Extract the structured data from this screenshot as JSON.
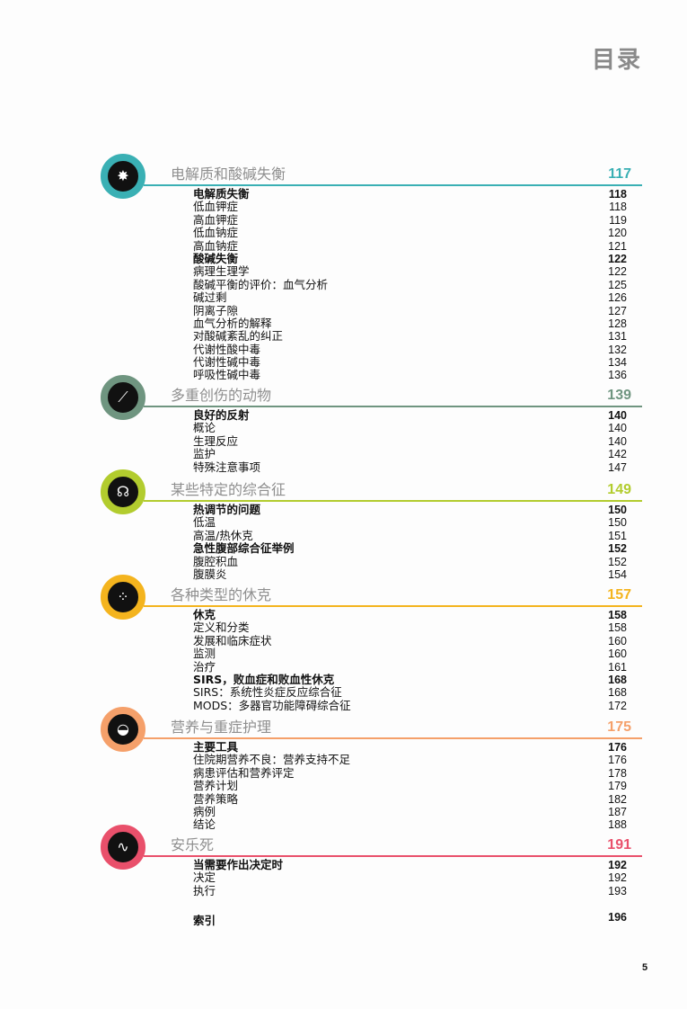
{
  "title": "目录",
  "sections": [
    {
      "title": "电解质和酸碱失衡",
      "page": "117",
      "color": "#3ab0b4",
      "icon": "h-plus-burst-icon",
      "glyph": "✸",
      "items": [
        [
          "电解质失衡",
          "118",
          true
        ],
        [
          "低血钾症",
          "118",
          false
        ],
        [
          "高血钾症",
          "119",
          false
        ],
        [
          "低血钠症",
          "120",
          false
        ],
        [
          "高血钠症",
          "121",
          false
        ],
        [
          "酸碱失衡",
          "122",
          true
        ],
        [
          "病理生理学",
          "122",
          false
        ],
        [
          "酸碱平衡的评价：血气分析",
          "125",
          false
        ],
        [
          "碱过剩",
          "126",
          false
        ],
        [
          "阴离子隙",
          "127",
          false
        ],
        [
          "血气分析的解释",
          "128",
          false
        ],
        [
          "对酸碱紊乱的纠正",
          "131",
          false
        ],
        [
          "代谢性酸中毒",
          "132",
          false
        ],
        [
          "代谢性碱中毒",
          "134",
          false
        ],
        [
          "呼吸性碱中毒",
          "136",
          false
        ]
      ]
    },
    {
      "title": "多重创伤的动物",
      "page": "139",
      "color": "#6f9580",
      "icon": "bone-icon",
      "glyph": "⟋",
      "items": [
        [
          "良好的反射",
          "140",
          true
        ],
        [
          "概论",
          "140",
          false
        ],
        [
          "生理反应",
          "140",
          false
        ],
        [
          "监护",
          "142",
          false
        ],
        [
          "特殊注意事项",
          "147",
          false
        ]
      ]
    },
    {
      "title": "某些特定的综合征",
      "page": "149",
      "color": "#b2cc2e",
      "icon": "animal-head-icon",
      "glyph": "☊",
      "items": [
        [
          "热调节的问题",
          "150",
          true
        ],
        [
          "低温",
          "150",
          false
        ],
        [
          "高温/热休克",
          "151",
          false
        ],
        [
          "急性腹部综合征举例",
          "152",
          true
        ],
        [
          "腹腔积血",
          "152",
          false
        ],
        [
          "腹膜炎",
          "154",
          false
        ]
      ]
    },
    {
      "title": "各种类型的休克",
      "page": "157",
      "color": "#f4b41e",
      "icon": "cells-icon",
      "glyph": "⁘",
      "items": [
        [
          "休克",
          "158",
          true
        ],
        [
          "定义和分类",
          "158",
          false
        ],
        [
          "发展和临床症状",
          "160",
          false
        ],
        [
          "监测",
          "160",
          false
        ],
        [
          "治疗",
          "161",
          false
        ],
        [
          "SIRS，败血症和败血性休克",
          "168",
          true
        ],
        [
          "SIRS：系统性炎症反应综合征",
          "168",
          false
        ],
        [
          "MODS：多器官功能障碍综合征",
          "172",
          false
        ]
      ]
    },
    {
      "title": "营养与重症护理",
      "page": "175",
      "color": "#f5a06a",
      "icon": "food-bowl-icon",
      "glyph": "◒",
      "items": [
        [
          "主要工具",
          "176",
          true
        ],
        [
          "住院期营养不良：营养支持不足",
          "176",
          false
        ],
        [
          "病患评估和营养评定",
          "178",
          false
        ],
        [
          "营养计划",
          "179",
          false
        ],
        [
          "营养策略",
          "182",
          false
        ],
        [
          "病例",
          "187",
          false
        ],
        [
          "结论",
          "188",
          false
        ]
      ]
    },
    {
      "title": "安乐死",
      "page": "191",
      "color": "#e9506b",
      "icon": "heartbeat-icon",
      "glyph": "∿",
      "items": [
        [
          "当需要作出决定时",
          "192",
          true
        ],
        [
          "决定",
          "192",
          false
        ],
        [
          "执行",
          "193",
          false
        ]
      ]
    }
  ],
  "index": {
    "label": "索引",
    "page": "196"
  },
  "page_number": "5"
}
